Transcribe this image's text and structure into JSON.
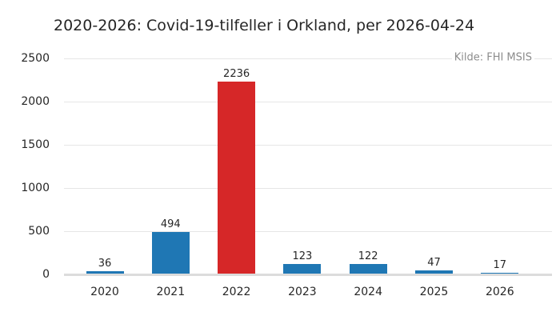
{
  "chart_data": {
    "type": "bar",
    "title": "2020-2026: Covid-19-tilfeller i Orkland, per 2026-04-24",
    "annotation": "Kilde: FHI MSIS",
    "categories": [
      "2020",
      "2021",
      "2022",
      "2023",
      "2024",
      "2025",
      "2026"
    ],
    "values": [
      36,
      494,
      2236,
      123,
      122,
      47,
      17
    ],
    "value_labels": [
      "36",
      "494",
      "2236",
      "123",
      "122",
      "47",
      "17"
    ],
    "bar_colors": [
      "#1f77b4",
      "#1f77b4",
      "#d62728",
      "#1f77b4",
      "#1f77b4",
      "#1f77b4",
      "#1f77b4"
    ],
    "yticks": [
      0,
      500,
      1000,
      1500,
      2000,
      2500
    ],
    "ylim": [
      0,
      2500
    ],
    "xlabel": "",
    "ylabel": "",
    "grid": true,
    "legend_position": "none",
    "colors": {
      "bar_blue": "#1f77b4",
      "bar_highlight_red": "#d62728",
      "gridline": "#e6e6e6",
      "baseline": "#dcdcdc",
      "text": "#262626",
      "source_text": "#8c8c8c",
      "background": "#ffffff"
    }
  }
}
